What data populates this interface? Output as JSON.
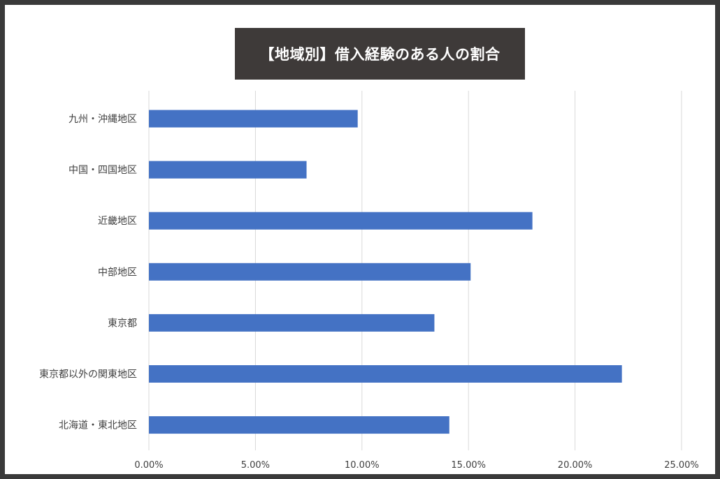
{
  "chart_data": {
    "type": "bar",
    "orientation": "horizontal",
    "title": "【地域別】借入経験のある人の割合",
    "categories": [
      "九州・沖縄地区",
      "中国・四国地区",
      "近畿地区",
      "中部地区",
      "東京都",
      "東京都以外の関東地区",
      "北海道・東北地区"
    ],
    "values": [
      9.8,
      7.4,
      18.0,
      15.1,
      13.4,
      22.2,
      14.1
    ],
    "xlim": [
      0,
      25
    ],
    "x_ticks": [
      0,
      5,
      10,
      15,
      20,
      25
    ],
    "x_tick_labels": [
      "0.00%",
      "5.00%",
      "10.00%",
      "15.00%",
      "20.00%",
      "25.00%"
    ],
    "grid": "vertical",
    "bar_color": "#4472c4",
    "title_bg_color": "#3e3a39"
  }
}
